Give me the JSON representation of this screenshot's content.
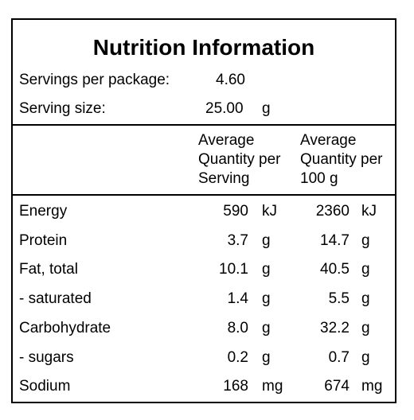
{
  "title": "Nutrition Information",
  "servings": {
    "label": "Servings per package:",
    "value": "4.60"
  },
  "serving_size": {
    "label": "Serving size:",
    "value": "25.00",
    "unit": "g"
  },
  "columns": {
    "per_serving": [
      "Average",
      "Quantity per",
      "Serving"
    ],
    "per_100g": [
      "Average",
      "Quantity per",
      "100 g"
    ]
  },
  "rows": [
    {
      "label": "Energy",
      "serving": "590",
      "serving_unit": "kJ",
      "per100": "2360",
      "per100_unit": "kJ"
    },
    {
      "label": "Protein",
      "serving": "3.7",
      "serving_unit": "g",
      "per100": "14.7",
      "per100_unit": "g"
    },
    {
      "label": "Fat, total",
      "serving": "10.1",
      "serving_unit": "g",
      "per100": "40.5",
      "per100_unit": "g"
    },
    {
      "label": "- saturated",
      "serving": "1.4",
      "serving_unit": "g",
      "per100": "5.5",
      "per100_unit": "g"
    },
    {
      "label": "Carbohydrate",
      "serving": "8.0",
      "serving_unit": "g",
      "per100": "32.2",
      "per100_unit": "g"
    },
    {
      "label": "- sugars",
      "serving": "0.2",
      "serving_unit": "g",
      "per100": "0.7",
      "per100_unit": "g"
    },
    {
      "label": "Sodium",
      "serving": "168",
      "serving_unit": "mg",
      "per100": "674",
      "per100_unit": "mg"
    }
  ]
}
